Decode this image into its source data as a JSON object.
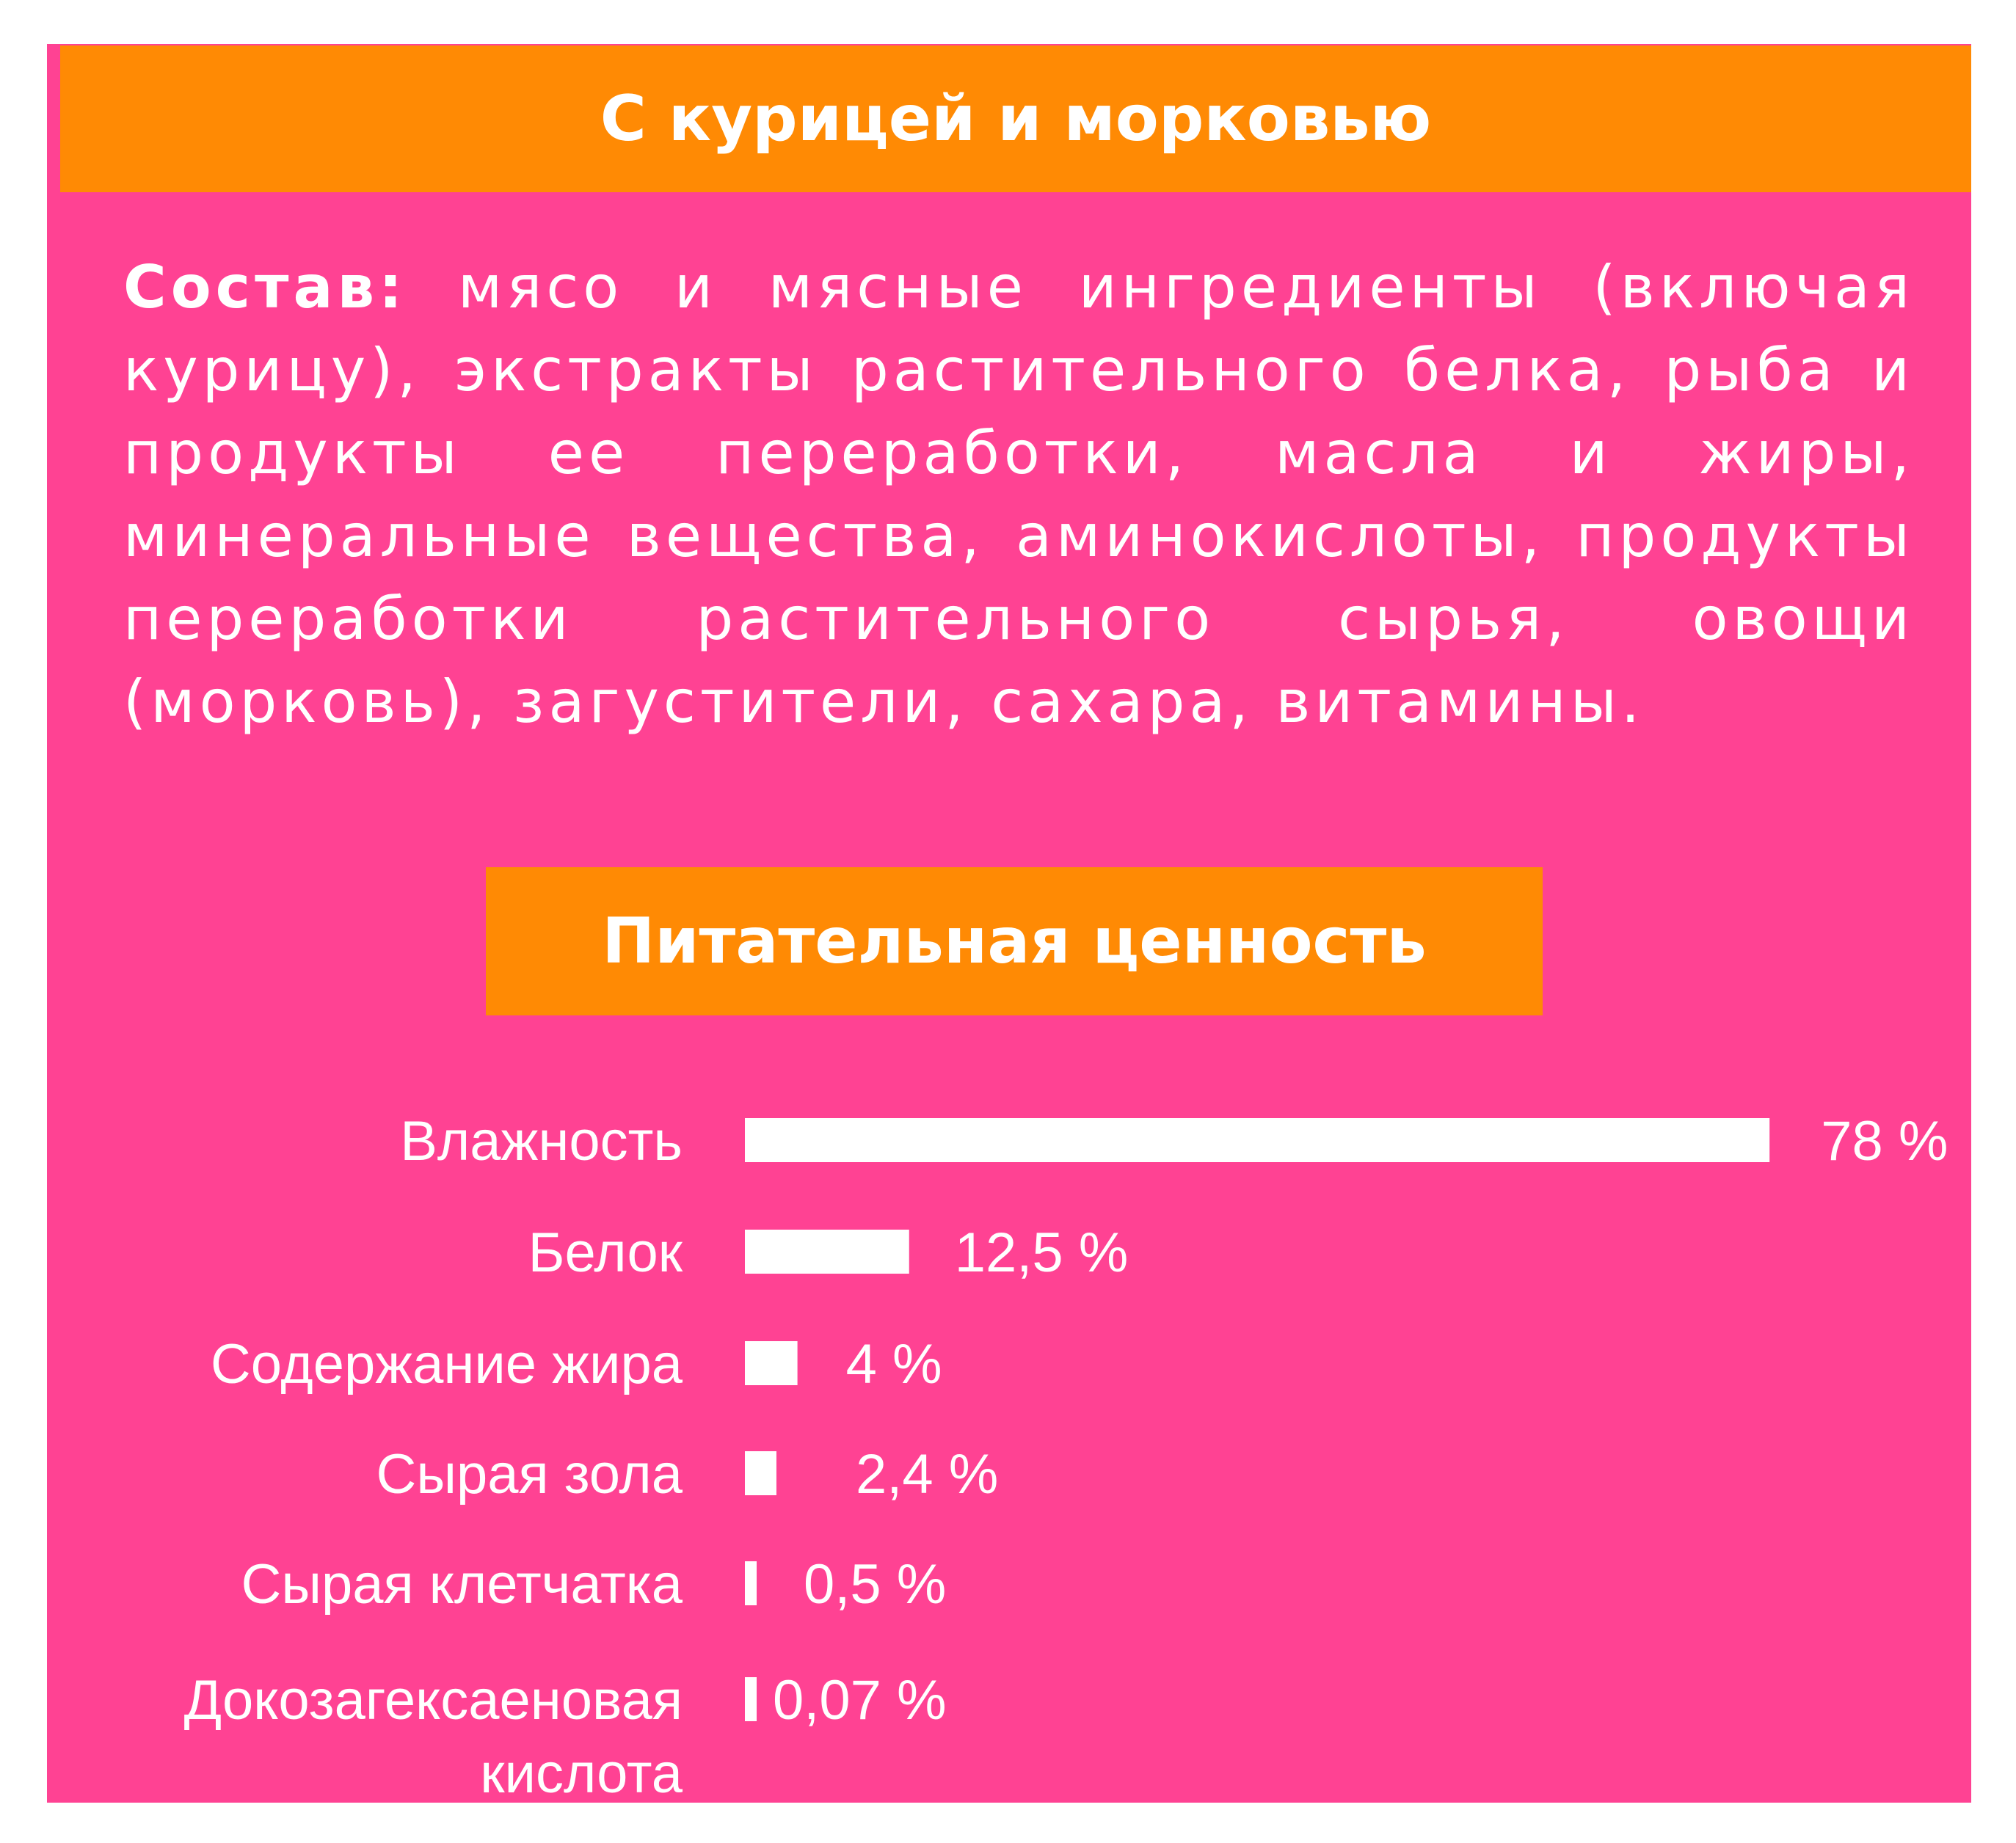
{
  "colors": {
    "background": "#ffffff",
    "panel": "#ff4293",
    "banner": "#ff8a04",
    "text": "#ffffff",
    "bar": "#ffffff"
  },
  "header": {
    "title": "С курицей и морковью"
  },
  "composition": {
    "lead": "Состав:",
    "text": " мясо и мясные ингредиенты (включая курицу), экстракты растительного белка, рыба и продукты ее переработки, масла и жиры, минеральные вещества, аминокислоты, продукты переработки растительного сырья, овощи (морковь), загустители, сахара, витамины."
  },
  "section": {
    "title": "Питательная ценность"
  },
  "chart_data": {
    "type": "bar",
    "orientation": "horizontal",
    "categories": [
      [
        "Влажность"
      ],
      [
        "Белок"
      ],
      [
        "Содержание жира"
      ],
      [
        "Сырая зола"
      ],
      [
        "Сырая клетчатка"
      ],
      [
        "Докозагексаеновая",
        "кислота"
      ]
    ],
    "values": [
      78,
      12.5,
      4,
      2.4,
      0.5,
      0.07
    ],
    "value_labels": [
      "78 %",
      "12,5 %",
      "4 %",
      "2,4 %",
      "0,5 %",
      "0,07 %"
    ],
    "unit": "%",
    "grid": false,
    "legend": "none"
  }
}
